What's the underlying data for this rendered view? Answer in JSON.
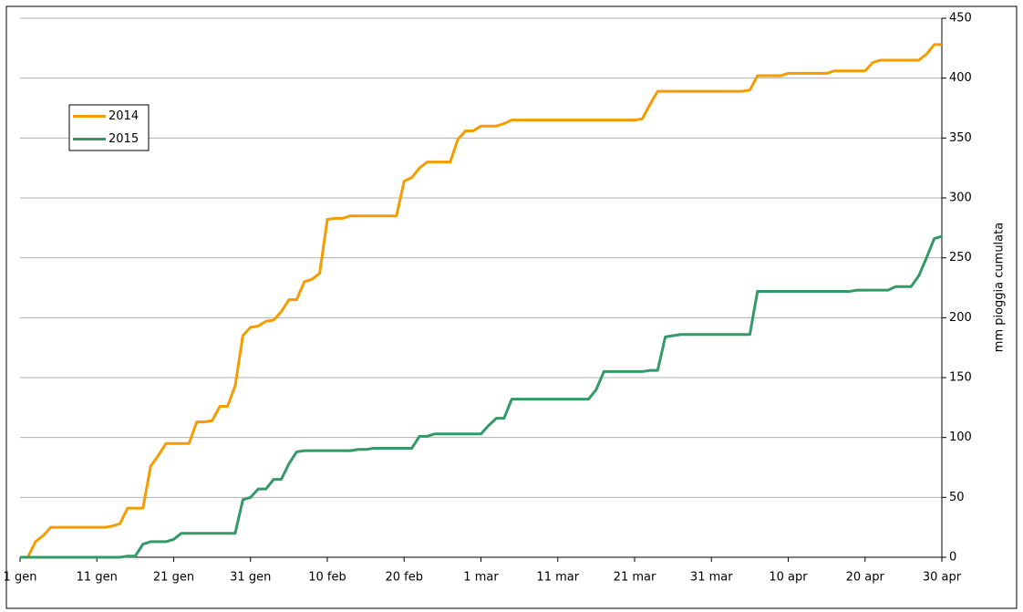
{
  "chart_data": {
    "type": "line",
    "y_label": "mm pioggia cumulata",
    "categories": [
      "1 gen",
      null,
      null,
      null,
      null,
      null,
      null,
      null,
      null,
      null,
      "11 gen",
      null,
      null,
      null,
      null,
      null,
      null,
      null,
      null,
      null,
      "21 gen",
      null,
      null,
      null,
      null,
      null,
      null,
      null,
      null,
      null,
      "31 gen",
      null,
      null,
      null,
      null,
      null,
      null,
      null,
      null,
      null,
      "10 feb",
      null,
      null,
      null,
      null,
      null,
      null,
      null,
      null,
      null,
      "20 feb",
      null,
      null,
      null,
      null,
      null,
      null,
      null,
      null,
      null,
      "1 mar",
      null,
      null,
      null,
      null,
      null,
      null,
      null,
      null,
      null,
      "11 mar",
      null,
      null,
      null,
      null,
      null,
      null,
      null,
      null,
      null,
      "21 mar",
      null,
      null,
      null,
      null,
      null,
      null,
      null,
      null,
      null,
      "31 mar",
      null,
      null,
      null,
      null,
      null,
      null,
      null,
      null,
      null,
      "10 apr",
      null,
      null,
      null,
      null,
      null,
      null,
      null,
      null,
      null,
      "20 apr",
      null,
      null,
      null,
      null,
      null,
      null,
      null,
      null,
      null,
      "30 apr"
    ],
    "series": [
      {
        "name": "2014",
        "color": "#f59c00",
        "values": [
          0,
          0,
          13,
          18,
          25,
          25,
          25,
          25,
          25,
          25,
          25,
          25,
          26,
          28,
          41,
          41,
          41,
          76,
          85,
          95,
          95,
          95,
          95,
          113,
          113,
          114,
          126,
          126,
          143,
          185,
          192,
          193,
          197,
          198,
          205,
          215,
          215,
          230,
          232,
          237,
          282,
          283,
          283,
          285,
          285,
          285,
          285,
          285,
          285,
          285,
          314,
          317,
          325,
          330,
          330,
          330,
          330,
          349,
          356,
          356,
          360,
          360,
          360,
          362,
          365,
          365,
          365,
          365,
          365,
          365,
          365,
          365,
          365,
          365,
          365,
          365,
          365,
          365,
          365,
          365,
          365,
          366,
          378,
          389,
          389,
          389,
          389,
          389,
          389,
          389,
          389,
          389,
          389,
          389,
          389,
          390,
          402,
          402,
          402,
          402,
          404,
          404,
          404,
          404,
          404,
          404,
          406,
          406,
          406,
          406,
          406,
          413,
          415,
          415,
          415,
          415,
          415,
          415,
          420,
          428,
          428
        ]
      },
      {
        "name": "2015",
        "color": "#339966",
        "values": [
          0,
          0,
          0,
          0,
          0,
          0,
          0,
          0,
          0,
          0,
          0,
          0,
          0,
          0,
          1,
          1,
          11,
          13,
          13,
          13,
          15,
          20,
          20,
          20,
          20,
          20,
          20,
          20,
          20,
          48,
          50,
          57,
          57,
          65,
          65,
          78,
          88,
          89,
          89,
          89,
          89,
          89,
          89,
          89,
          90,
          90,
          91,
          91,
          91,
          91,
          91,
          91,
          101,
          101,
          103,
          103,
          103,
          103,
          103,
          103,
          103,
          110,
          116,
          116,
          132,
          132,
          132,
          132,
          132,
          132,
          132,
          132,
          132,
          132,
          132,
          140,
          155,
          155,
          155,
          155,
          155,
          155,
          156,
          156,
          184,
          185,
          186,
          186,
          186,
          186,
          186,
          186,
          186,
          186,
          186,
          186,
          222,
          222,
          222,
          222,
          222,
          222,
          222,
          222,
          222,
          222,
          222,
          222,
          222,
          223,
          223,
          223,
          223,
          223,
          226,
          226,
          226,
          235,
          250,
          266,
          268
        ]
      }
    ],
    "ylim": [
      0,
      450
    ],
    "yticks": [
      0,
      50,
      100,
      150,
      200,
      250,
      300,
      350,
      400,
      450
    ],
    "grid": true,
    "legend": "upper left"
  }
}
